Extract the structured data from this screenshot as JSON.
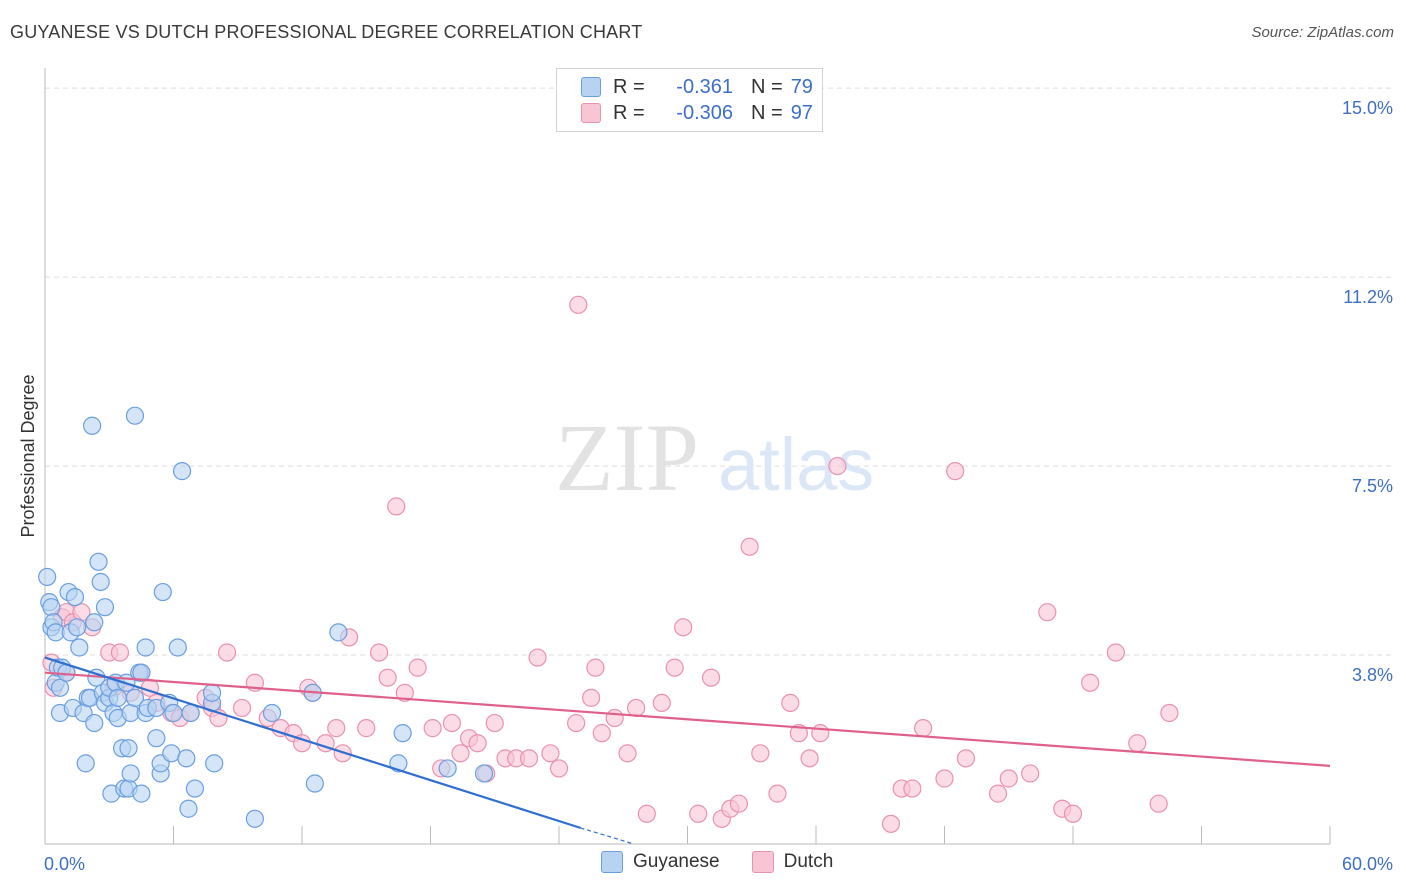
{
  "title": "GUYANESE VS DUTCH PROFESSIONAL DEGREE CORRELATION CHART",
  "source": "Source: ZipAtlas.com",
  "watermark": {
    "zip": "ZIP",
    "atlas": "atlas"
  },
  "legend_top": [
    {
      "r_label": "R =",
      "r_value": "-0.361",
      "n_label": "N =",
      "n_value": "79"
    },
    {
      "r_label": "R =",
      "r_value": "-0.306",
      "n_label": "N =",
      "n_value": "97"
    }
  ],
  "colors": {
    "guyanese_fill": "#b8d3f2",
    "guyanese_stroke": "#6b9ee0",
    "guyanese_line": "#2f6fd0",
    "dutch_fill": "#f8c5d5",
    "dutch_stroke": "#e991b0",
    "dutch_line": "#e0608c",
    "grid": "#dddddd",
    "tick_label": "#3d6fc4"
  },
  "chart_data": {
    "type": "scatter",
    "xlabel": "",
    "ylabel": "Professional Degree",
    "x_tick_labels": [
      "0.0%",
      "60.0%"
    ],
    "y_tick_labels": [
      "15.0%",
      "11.2%",
      "7.5%",
      "3.8%"
    ],
    "xlim": [
      0,
      60
    ],
    "ylim": [
      0,
      15.4
    ],
    "y_gridlines": [
      15.0,
      11.25,
      7.5,
      3.75
    ],
    "legend_position": "bottom",
    "series": [
      {
        "name": "Guyanese",
        "r": -0.361,
        "n": 79,
        "trend": {
          "x": [
            0.0,
            25.0
          ],
          "y": [
            3.7,
            0.32
          ]
        },
        "trend_dashed": {
          "x": [
            25.0,
            27.5
          ],
          "y": [
            0.32,
            0.0
          ]
        },
        "points": [
          [
            0.1,
            5.3
          ],
          [
            0.2,
            4.8
          ],
          [
            0.3,
            4.7
          ],
          [
            0.3,
            4.3
          ],
          [
            0.4,
            4.4
          ],
          [
            0.5,
            4.2
          ],
          [
            0.5,
            3.2
          ],
          [
            0.6,
            3.5
          ],
          [
            0.7,
            3.1
          ],
          [
            0.7,
            2.6
          ],
          [
            0.8,
            3.5
          ],
          [
            1.0,
            3.4
          ],
          [
            1.1,
            5.0
          ],
          [
            1.2,
            4.2
          ],
          [
            1.3,
            2.7
          ],
          [
            1.4,
            4.9
          ],
          [
            1.5,
            4.3
          ],
          [
            1.6,
            3.9
          ],
          [
            1.8,
            2.6
          ],
          [
            1.9,
            1.6
          ],
          [
            2.0,
            2.9
          ],
          [
            2.1,
            2.9
          ],
          [
            2.2,
            8.3
          ],
          [
            2.3,
            2.4
          ],
          [
            2.3,
            4.4
          ],
          [
            2.4,
            3.3
          ],
          [
            2.5,
            5.6
          ],
          [
            2.6,
            5.2
          ],
          [
            2.7,
            3.0
          ],
          [
            2.8,
            4.7
          ],
          [
            2.8,
            2.8
          ],
          [
            3.0,
            2.9
          ],
          [
            3.0,
            3.1
          ],
          [
            3.1,
            1.0
          ],
          [
            3.2,
            2.6
          ],
          [
            3.3,
            3.2
          ],
          [
            3.4,
            2.5
          ],
          [
            3.4,
            2.9
          ],
          [
            3.6,
            1.9
          ],
          [
            3.7,
            1.1
          ],
          [
            3.8,
            3.2
          ],
          [
            3.9,
            1.9
          ],
          [
            3.9,
            1.1
          ],
          [
            4.0,
            2.6
          ],
          [
            4.0,
            1.4
          ],
          [
            4.2,
            2.9
          ],
          [
            4.2,
            8.5
          ],
          [
            4.4,
            3.4
          ],
          [
            4.5,
            3.4
          ],
          [
            4.5,
            1.0
          ],
          [
            4.7,
            2.6
          ],
          [
            4.7,
            3.9
          ],
          [
            4.8,
            2.7
          ],
          [
            5.2,
            2.7
          ],
          [
            5.2,
            2.1
          ],
          [
            5.4,
            1.4
          ],
          [
            5.4,
            1.6
          ],
          [
            5.5,
            5.0
          ],
          [
            5.8,
            2.8
          ],
          [
            5.9,
            1.8
          ],
          [
            6.0,
            2.6
          ],
          [
            6.2,
            3.9
          ],
          [
            6.4,
            7.4
          ],
          [
            6.6,
            1.7
          ],
          [
            6.7,
            0.7
          ],
          [
            6.8,
            2.6
          ],
          [
            7.0,
            1.1
          ],
          [
            7.8,
            2.8
          ],
          [
            7.8,
            3.0
          ],
          [
            7.9,
            1.6
          ],
          [
            9.8,
            0.5
          ],
          [
            12.5,
            3.0
          ],
          [
            12.6,
            1.2
          ],
          [
            13.7,
            4.2
          ],
          [
            16.5,
            1.6
          ],
          [
            16.7,
            2.2
          ],
          [
            18.8,
            1.5
          ],
          [
            20.5,
            1.4
          ],
          [
            10.6,
            2.6
          ]
        ]
      },
      {
        "name": "Dutch",
        "r": -0.306,
        "n": 97,
        "trend": {
          "x": [
            0.0,
            60.0
          ],
          "y": [
            3.4,
            1.55
          ]
        },
        "points": [
          [
            0.3,
            3.6
          ],
          [
            0.4,
            3.1
          ],
          [
            0.8,
            4.5
          ],
          [
            1.0,
            4.6
          ],
          [
            1.0,
            3.4
          ],
          [
            1.3,
            4.4
          ],
          [
            1.7,
            4.6
          ],
          [
            2.2,
            4.3
          ],
          [
            3.0,
            3.8
          ],
          [
            3.2,
            3.1
          ],
          [
            3.5,
            3.8
          ],
          [
            4.0,
            3.0
          ],
          [
            4.5,
            3.4
          ],
          [
            4.9,
            3.1
          ],
          [
            5.2,
            2.8
          ],
          [
            5.9,
            2.6
          ],
          [
            6.3,
            2.5
          ],
          [
            6.8,
            2.6
          ],
          [
            7.5,
            2.9
          ],
          [
            7.8,
            2.7
          ],
          [
            8.1,
            2.5
          ],
          [
            8.5,
            3.8
          ],
          [
            9.2,
            2.7
          ],
          [
            9.8,
            3.2
          ],
          [
            10.4,
            2.5
          ],
          [
            11.0,
            2.3
          ],
          [
            11.6,
            2.2
          ],
          [
            12.0,
            2.0
          ],
          [
            12.3,
            3.1
          ],
          [
            12.5,
            3.0
          ],
          [
            13.1,
            2.0
          ],
          [
            13.6,
            2.3
          ],
          [
            13.9,
            1.8
          ],
          [
            14.2,
            4.1
          ],
          [
            15.0,
            2.3
          ],
          [
            15.6,
            3.8
          ],
          [
            16.0,
            3.3
          ],
          [
            16.4,
            6.7
          ],
          [
            16.8,
            3.0
          ],
          [
            17.4,
            3.5
          ],
          [
            18.1,
            2.3
          ],
          [
            18.5,
            1.5
          ],
          [
            19.0,
            2.4
          ],
          [
            19.4,
            1.8
          ],
          [
            19.8,
            2.1
          ],
          [
            20.2,
            2.0
          ],
          [
            20.6,
            1.4
          ],
          [
            21.0,
            2.4
          ],
          [
            21.5,
            1.7
          ],
          [
            22.0,
            1.7
          ],
          [
            22.6,
            1.7
          ],
          [
            23.0,
            3.7
          ],
          [
            23.6,
            1.8
          ],
          [
            24.0,
            1.5
          ],
          [
            24.8,
            2.4
          ],
          [
            24.9,
            10.7
          ],
          [
            25.5,
            2.9
          ],
          [
            25.7,
            3.5
          ],
          [
            26.0,
            2.2
          ],
          [
            26.6,
            2.5
          ],
          [
            27.2,
            1.8
          ],
          [
            27.6,
            2.7
          ],
          [
            28.1,
            0.6
          ],
          [
            28.8,
            2.8
          ],
          [
            29.4,
            3.5
          ],
          [
            29.8,
            4.3
          ],
          [
            30.5,
            0.6
          ],
          [
            31.1,
            3.3
          ],
          [
            31.6,
            0.5
          ],
          [
            32.0,
            0.7
          ],
          [
            32.4,
            0.8
          ],
          [
            32.9,
            5.9
          ],
          [
            33.4,
            1.8
          ],
          [
            34.2,
            1.0
          ],
          [
            34.8,
            2.8
          ],
          [
            35.2,
            2.2
          ],
          [
            35.7,
            1.7
          ],
          [
            36.2,
            2.2
          ],
          [
            37.0,
            7.5
          ],
          [
            39.5,
            0.4
          ],
          [
            40.0,
            1.1
          ],
          [
            40.5,
            1.1
          ],
          [
            41.0,
            2.3
          ],
          [
            42.0,
            1.3
          ],
          [
            42.5,
            7.4
          ],
          [
            43.0,
            1.7
          ],
          [
            44.5,
            1.0
          ],
          [
            45.0,
            1.3
          ],
          [
            46.0,
            1.4
          ],
          [
            46.8,
            4.6
          ],
          [
            47.5,
            0.7
          ],
          [
            48.0,
            0.6
          ],
          [
            48.8,
            3.2
          ],
          [
            50.0,
            3.8
          ],
          [
            51.0,
            2.0
          ],
          [
            52.0,
            0.8
          ],
          [
            52.5,
            2.6
          ]
        ]
      }
    ]
  },
  "bottom_legend": [
    {
      "label": "Guyanese"
    },
    {
      "label": "Dutch"
    }
  ]
}
